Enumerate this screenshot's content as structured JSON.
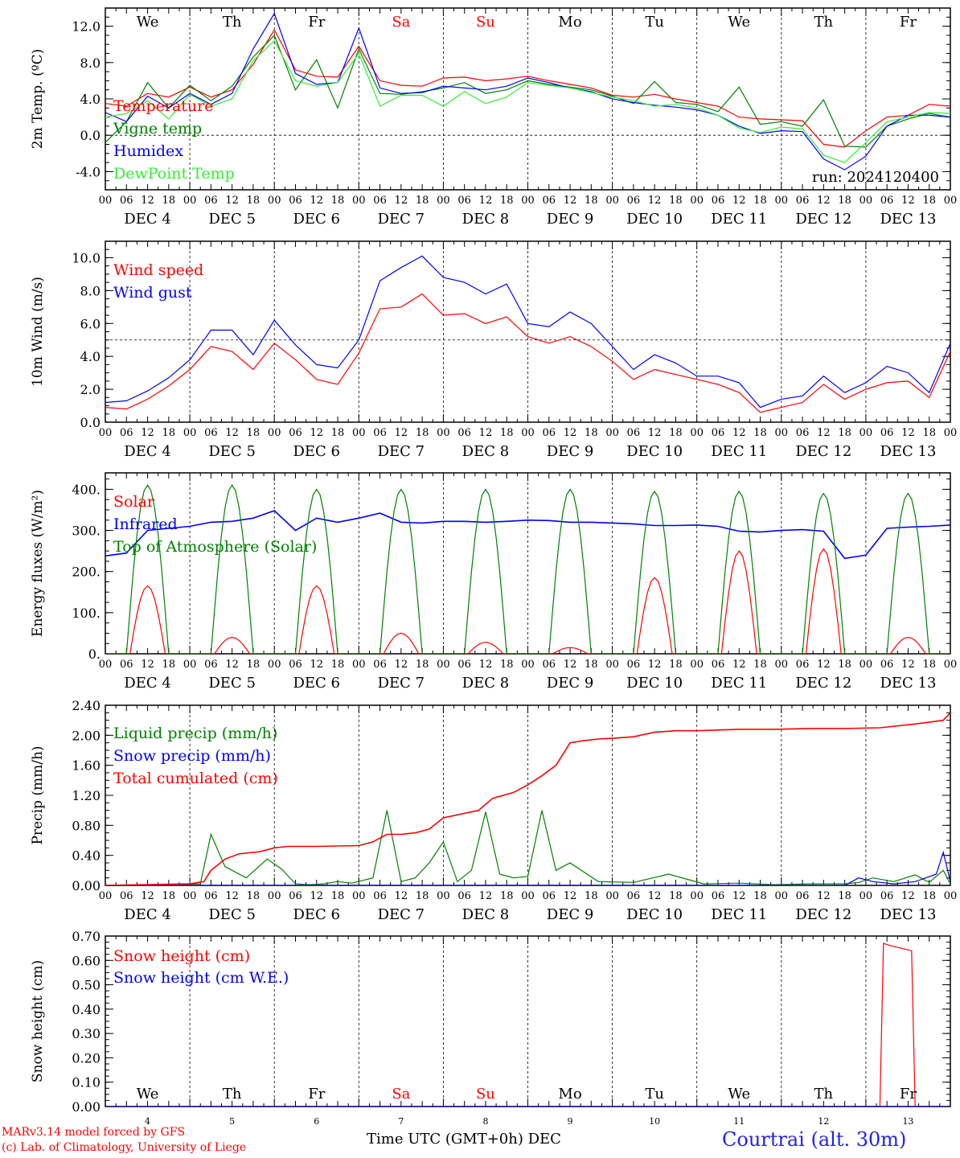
{
  "footer": {
    "model": "MARv3.14 model forced by GFS",
    "credit": "(c) Lab. of Climatology, University of Liege",
    "xlabel": "Time UTC (GMT+0h) DEC",
    "station": "Courtrai (alt. 30m)"
  },
  "axis": {
    "hour_ticks": [
      "00",
      "06",
      "12",
      "18"
    ],
    "end_tick": "00",
    "date_labels": [
      "DEC  4",
      "DEC  5",
      "DEC  6",
      "DEC  7",
      "DEC  8",
      "DEC  9",
      "DEC 10",
      "DEC 11",
      "DEC 12",
      "DEC 13"
    ],
    "day_numbers": [
      "4",
      "5",
      "6",
      "7",
      "8",
      "9",
      "10",
      "11",
      "12",
      "13"
    ],
    "weekdays": [
      "We",
      "Th",
      "Fr",
      "Sa",
      "Su",
      "Mo",
      "Tu",
      "We",
      "Th",
      "Fr"
    ],
    "weekday_colors": [
      "#000000",
      "#000000",
      "#000000",
      "#ff0000",
      "#ff0000",
      "#000000",
      "#000000",
      "#000000",
      "#000000",
      "#000000"
    ]
  },
  "colors": {
    "red": "#ff0000",
    "green": "#008000",
    "blue": "#0000ff",
    "lightgreen": "#33ee33"
  },
  "chart_data": [
    {
      "type": "line",
      "ylabel": "2m Temp. (ºC)",
      "ylim": [
        -6,
        14
      ],
      "yticks": [
        "-4.0",
        "0.0",
        "4.0",
        "8.0",
        "12.0"
      ],
      "yticks_values": [
        -4,
        0,
        4,
        8,
        12
      ],
      "ref_line": 0,
      "annotation": "run: 2024120400",
      "x_unit": "hours since DEC 4 00 UTC",
      "series": [
        {
          "name": "Temperature",
          "color": "#ff0000",
          "x": [
            0,
            6,
            12,
            18,
            24,
            30,
            36,
            42,
            48,
            54,
            60,
            66,
            72,
            78,
            84,
            90,
            96,
            102,
            108,
            114,
            120,
            126,
            132,
            138,
            144,
            150,
            156,
            162,
            168,
            174,
            180,
            186,
            192,
            198,
            204,
            210,
            216,
            222,
            228,
            234,
            240
          ],
          "values": [
            3.5,
            3.2,
            4.6,
            4.2,
            5.3,
            4.2,
            5.0,
            7.8,
            11.6,
            7.2,
            6.5,
            6.4,
            9.8,
            6.0,
            5.5,
            5.4,
            6.3,
            6.4,
            6.0,
            6.2,
            6.5,
            6.0,
            5.6,
            5.2,
            4.4,
            4.2,
            4.5,
            4.0,
            3.6,
            3.2,
            2.0,
            1.8,
            1.7,
            1.6,
            -1.0,
            -1.3,
            0.5,
            2.0,
            2.2,
            3.4,
            3.2
          ]
        },
        {
          "name": "Vigne temp",
          "color": "#008000",
          "x": [
            0,
            6,
            12,
            18,
            24,
            30,
            36,
            42,
            48,
            54,
            60,
            66,
            72,
            78,
            84,
            90,
            96,
            102,
            108,
            114,
            120,
            126,
            132,
            138,
            144,
            150,
            156,
            162,
            168,
            174,
            180,
            186,
            192,
            198,
            204,
            210,
            216,
            222,
            228,
            234,
            240
          ],
          "values": [
            -0.8,
            1.5,
            5.8,
            3.0,
            5.5,
            3.8,
            5.4,
            8.6,
            11.0,
            5.0,
            8.3,
            3.0,
            9.5,
            4.6,
            4.5,
            4.8,
            5.2,
            5.8,
            4.6,
            5.0,
            6.0,
            5.6,
            5.3,
            5.0,
            4.3,
            3.5,
            5.9,
            3.6,
            3.4,
            2.6,
            5.3,
            1.2,
            1.5,
            1.0,
            3.9,
            -1.2,
            -1.3,
            1.0,
            1.8,
            2.4,
            2.0
          ]
        },
        {
          "name": "Humidex",
          "color": "#0000ff",
          "x": [
            0,
            6,
            12,
            18,
            24,
            30,
            36,
            42,
            48,
            54,
            60,
            66,
            72,
            78,
            84,
            90,
            96,
            102,
            108,
            114,
            120,
            126,
            132,
            138,
            144,
            150,
            156,
            162,
            168,
            174,
            180,
            186,
            192,
            198,
            204,
            210,
            216,
            222,
            228,
            234,
            240
          ],
          "values": [
            2.5,
            1.5,
            4.3,
            3.0,
            4.6,
            3.4,
            4.6,
            9.5,
            13.4,
            6.8,
            5.6,
            5.8,
            11.8,
            5.2,
            4.6,
            4.7,
            5.4,
            5.2,
            5.0,
            5.4,
            6.3,
            5.8,
            5.2,
            4.8,
            4.0,
            3.6,
            3.3,
            3.1,
            2.8,
            2.2,
            1.0,
            0.2,
            0.5,
            0.4,
            -2.6,
            -3.8,
            -2.3,
            1.0,
            2.2,
            2.2,
            2.0
          ]
        },
        {
          "name": "DewPoint Temp",
          "color": "#33ee33",
          "x": [
            0,
            6,
            12,
            18,
            24,
            30,
            36,
            42,
            48,
            54,
            60,
            66,
            72,
            78,
            84,
            90,
            96,
            102,
            108,
            114,
            120,
            126,
            132,
            138,
            144,
            150,
            156,
            162,
            168,
            174,
            180,
            186,
            192,
            198,
            204,
            210,
            216,
            222,
            228,
            234,
            240
          ],
          "values": [
            2.0,
            2.4,
            3.8,
            1.8,
            4.5,
            3.2,
            4.0,
            8.2,
            10.4,
            6.0,
            5.4,
            5.8,
            9.0,
            3.2,
            4.4,
            4.4,
            3.2,
            4.8,
            3.5,
            4.2,
            5.8,
            5.5,
            5.2,
            4.7,
            4.2,
            3.8,
            3.2,
            3.4,
            3.0,
            2.2,
            0.8,
            0.3,
            0.9,
            0.7,
            -2.2,
            -3.0,
            -0.8,
            1.5,
            2.0,
            2.5,
            2.4
          ]
        }
      ]
    },
    {
      "type": "line",
      "ylabel": "10m Wind (m/s)",
      "ylim": [
        0,
        11
      ],
      "yticks": [
        "0.0",
        "2.0",
        "4.0",
        "6.0",
        "8.0",
        "10.0"
      ],
      "yticks_values": [
        0,
        2,
        4,
        6,
        8,
        10
      ],
      "ref_line": 5,
      "x_unit": "hours since DEC 4 00 UTC",
      "series": [
        {
          "name": "Wind speed",
          "color": "#ff0000",
          "x": [
            0,
            6,
            12,
            18,
            24,
            30,
            36,
            42,
            48,
            54,
            60,
            66,
            72,
            78,
            84,
            90,
            96,
            102,
            108,
            114,
            120,
            126,
            132,
            138,
            144,
            150,
            156,
            162,
            168,
            174,
            180,
            186,
            192,
            198,
            204,
            210,
            216,
            222,
            228,
            234,
            240
          ],
          "values": [
            0.9,
            0.8,
            1.4,
            2.2,
            3.2,
            4.6,
            4.3,
            3.2,
            4.8,
            3.8,
            2.6,
            2.3,
            4.2,
            6.9,
            7.0,
            7.8,
            6.5,
            6.6,
            6.0,
            6.4,
            5.2,
            4.8,
            5.2,
            4.6,
            3.7,
            2.6,
            3.2,
            2.9,
            2.6,
            2.3,
            1.8,
            0.6,
            0.9,
            1.2,
            2.3,
            1.4,
            2.0,
            2.4,
            2.5,
            1.5,
            4.3
          ]
        },
        {
          "name": "Wind gust",
          "color": "#0000ff",
          "x": [
            0,
            6,
            12,
            18,
            24,
            30,
            36,
            42,
            48,
            54,
            60,
            66,
            72,
            78,
            84,
            90,
            96,
            102,
            108,
            114,
            120,
            126,
            132,
            138,
            144,
            150,
            156,
            162,
            168,
            174,
            180,
            186,
            192,
            198,
            204,
            210,
            216,
            222,
            228,
            234,
            240
          ],
          "values": [
            1.2,
            1.3,
            1.9,
            2.7,
            3.8,
            5.6,
            5.6,
            4.1,
            6.2,
            4.7,
            3.5,
            3.3,
            5.0,
            8.6,
            9.4,
            10.1,
            8.8,
            8.5,
            7.8,
            8.4,
            6.0,
            5.8,
            6.7,
            6.0,
            4.6,
            3.2,
            4.1,
            3.6,
            2.8,
            2.8,
            2.4,
            0.9,
            1.4,
            1.6,
            2.8,
            1.8,
            2.4,
            3.4,
            3.0,
            1.8,
            4.8
          ]
        }
      ]
    },
    {
      "type": "line",
      "ylabel": "Energy fluxes (W/m²)",
      "ylim": [
        0,
        440
      ],
      "yticks": [
        "0.",
        "100.",
        "200.",
        "300.",
        "400."
      ],
      "yticks_values": [
        0,
        100,
        200,
        300,
        400
      ],
      "x_unit": "hours since DEC 4 00 UTC",
      "series": [
        {
          "name": "Solar",
          "color": "#ff0000",
          "peaks": [
            165,
            40,
            165,
            50,
            28,
            15,
            185,
            250,
            255,
            40
          ]
        },
        {
          "name": "Infrared",
          "color": "#0000ff",
          "x": [
            0,
            6,
            12,
            18,
            24,
            30,
            36,
            42,
            48,
            54,
            60,
            66,
            72,
            78,
            84,
            90,
            96,
            102,
            108,
            114,
            120,
            126,
            132,
            138,
            144,
            150,
            156,
            162,
            168,
            174,
            180,
            186,
            192,
            198,
            204,
            210,
            216,
            222,
            228,
            234,
            240
          ],
          "values": [
            238,
            245,
            300,
            305,
            310,
            320,
            322,
            330,
            348,
            300,
            330,
            320,
            330,
            342,
            320,
            318,
            322,
            322,
            320,
            322,
            325,
            324,
            320,
            320,
            318,
            316,
            312,
            312,
            313,
            310,
            298,
            296,
            300,
            302,
            298,
            232,
            240,
            305,
            308,
            310,
            313
          ]
        },
        {
          "name": "Top of Atmosphere (Solar)",
          "color": "#008000",
          "peaks": [
            410,
            410,
            400,
            400,
            400,
            400,
            395,
            395,
            390,
            390
          ]
        }
      ]
    },
    {
      "type": "line",
      "ylabel": "Precip (mm/h)",
      "ylim": [
        0,
        2.4
      ],
      "yticks": [
        "0.00",
        "0.40",
        "0.80",
        "1.20",
        "1.60",
        "2.00",
        "2.40"
      ],
      "yticks_values": [
        0,
        0.4,
        0.8,
        1.2,
        1.6,
        2.0,
        2.4
      ],
      "x_unit": "hours since DEC 4 00 UTC",
      "series": [
        {
          "name": "Liquid precip (mm/h)",
          "color": "#008000",
          "x": [
            0,
            10,
            20,
            27,
            30,
            34,
            40,
            46,
            50,
            54,
            58,
            62,
            66,
            70,
            76,
            80,
            84,
            88,
            92,
            96,
            100,
            104,
            108,
            112,
            116,
            120,
            124,
            128,
            132,
            140,
            150,
            160,
            170,
            180,
            190,
            200,
            210,
            214,
            218,
            224,
            230,
            234,
            238,
            240
          ],
          "values": [
            0,
            0,
            0,
            0.02,
            0.68,
            0.25,
            0.1,
            0.35,
            0.22,
            0.02,
            0.01,
            0.02,
            0.05,
            0.03,
            0.1,
            1.0,
            0.05,
            0.1,
            0.3,
            0.58,
            0.05,
            0.2,
            0.98,
            0.15,
            0.1,
            0.12,
            1.0,
            0.2,
            0.3,
            0.05,
            0.04,
            0.15,
            0.02,
            0.03,
            0.01,
            0.02,
            0.02,
            0.04,
            0.1,
            0.05,
            0.14,
            0.04,
            0.2,
            0.02
          ]
        },
        {
          "name": "Snow precip (mm/h)",
          "color": "#0000ff",
          "x": [
            0,
            120,
            200,
            210,
            214,
            218,
            224,
            230,
            236,
            238,
            240
          ],
          "values": [
            0,
            0,
            0,
            0,
            0.1,
            0.05,
            0.02,
            0.05,
            0.15,
            0.44,
            0.05
          ]
        },
        {
          "name": "Total cumulated (cm)",
          "color": "#ff0000",
          "x": [
            0,
            24,
            28,
            30,
            34,
            38,
            44,
            48,
            52,
            60,
            72,
            76,
            80,
            84,
            88,
            92,
            96,
            102,
            106,
            110,
            116,
            120,
            124,
            128,
            132,
            136,
            140,
            144,
            150,
            156,
            162,
            168,
            174,
            180,
            190,
            200,
            210,
            220,
            230,
            238,
            240
          ],
          "values": [
            0,
            0.02,
            0.05,
            0.2,
            0.35,
            0.42,
            0.45,
            0.5,
            0.52,
            0.52,
            0.53,
            0.58,
            0.68,
            0.68,
            0.7,
            0.75,
            0.9,
            0.96,
            1.0,
            1.16,
            1.24,
            1.34,
            1.46,
            1.6,
            1.9,
            1.93,
            1.95,
            1.96,
            1.98,
            2.04,
            2.06,
            2.06,
            2.07,
            2.08,
            2.08,
            2.09,
            2.09,
            2.1,
            2.15,
            2.2,
            2.3
          ]
        }
      ]
    },
    {
      "type": "line",
      "ylabel": "Snow height (cm)",
      "ylim": [
        0,
        0.7
      ],
      "yticks": [
        "0.00",
        "0.10",
        "0.20",
        "0.30",
        "0.40",
        "0.50",
        "0.60",
        "0.70"
      ],
      "yticks_values": [
        0,
        0.1,
        0.2,
        0.3,
        0.4,
        0.5,
        0.6,
        0.7
      ],
      "x_unit": "hours since DEC 4 00 UTC",
      "series": [
        {
          "name": "Snow height (cm)",
          "color": "#ff0000",
          "x": [
            0,
            220,
            221,
            223,
            226,
            229,
            230,
            240
          ],
          "values": [
            0,
            0,
            0.67,
            0.66,
            0.65,
            0.64,
            0,
            0
          ]
        },
        {
          "name": "Snow height (cm W.E.)",
          "color": "#0000ff",
          "x": [
            0,
            240
          ],
          "values": [
            0,
            0
          ]
        }
      ]
    }
  ]
}
